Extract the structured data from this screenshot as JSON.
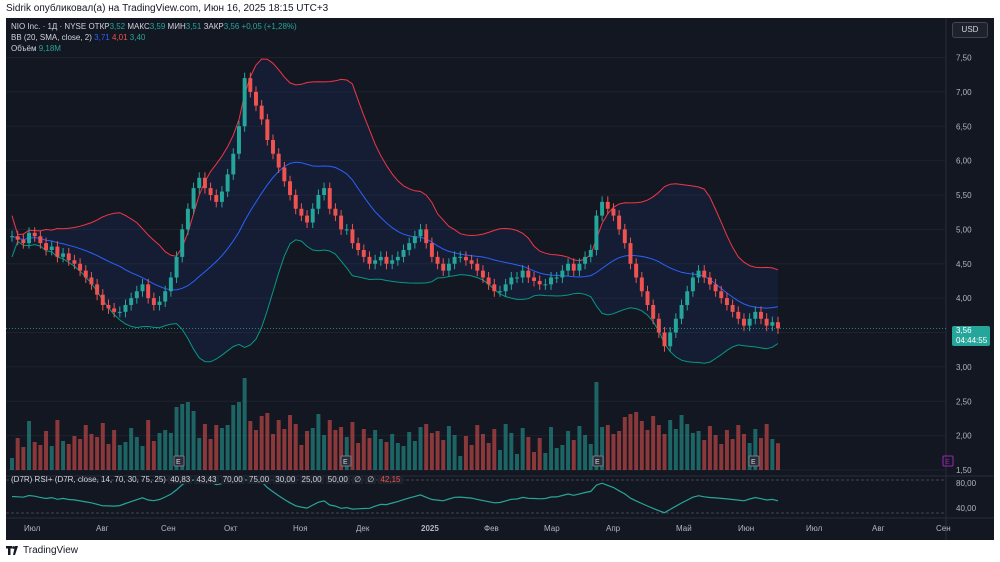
{
  "header": {
    "text": "Sidrik опубликовал(а) на TradingView.com, Июн 16, 2025 18:15 UTC+3"
  },
  "legend": {
    "symbol": "NIO Inc. · 1Д · NYSE",
    "open_label": "ОТКР",
    "open": "3,52",
    "high_label": "МАКС",
    "high": "3,59",
    "low_label": "МИН",
    "low": "3,51",
    "close_label": "ЗАКР",
    "close": "3,56",
    "change": "+0,05 (+1,28%)",
    "bb_label": "BB (20, SMA, close, 2)",
    "bb_mid": "3,71",
    "bb_upper": "4,01",
    "bb_lower": "3,40",
    "volume_label": "Объём",
    "volume": "9,18M"
  },
  "currency": "USD",
  "price_tag": {
    "price": "3,56",
    "countdown": "04:44:55"
  },
  "rsi": {
    "label": "(D7R) RSI+ (D7R, close, 14, 70, 30, 75, 25)",
    "values": [
      "40,83",
      "43,43",
      "70,00",
      "75,00",
      "30,00",
      "25,00",
      "50,00",
      "∅",
      "∅",
      "42,15"
    ],
    "axis": [
      "80,00",
      "40,00"
    ]
  },
  "price_axis": [
    "7,50",
    "7,00",
    "6,50",
    "6,00",
    "5,50",
    "5,00",
    "4,50",
    "4,00",
    "3,50",
    "3,00",
    "2,50",
    "2,00",
    "1,50"
  ],
  "time_axis": [
    "Июл",
    "Авг",
    "Сен",
    "Окт",
    "Ноя",
    "Дек",
    "2025",
    "Фев",
    "Мар",
    "Апр",
    "Май",
    "Июн",
    "Июл",
    "Авг",
    "Сен"
  ],
  "event_marker": "E",
  "branding": {
    "name": "TradingView"
  },
  "colors": {
    "bg": "#131722",
    "up": "#26a69a",
    "down": "#ef5350",
    "bb_mid": "#2962ff",
    "bb_upper": "#f23645",
    "bb_lower": "#089981"
  },
  "chart_data": {
    "type": "candlestick",
    "symbol": "NIO",
    "interval": "1D",
    "ylim": [
      1.5,
      7.9
    ],
    "x_months": [
      "Июл",
      "Авг",
      "Сен",
      "Окт",
      "Ноя",
      "Дек",
      "2025",
      "Фев",
      "Мар",
      "Апр",
      "Май",
      "Июн"
    ],
    "close_series": [
      4.9,
      4.85,
      4.8,
      4.95,
      4.9,
      4.8,
      4.7,
      4.75,
      4.6,
      4.65,
      4.55,
      4.5,
      4.4,
      4.3,
      4.2,
      4.05,
      3.9,
      3.85,
      3.8,
      3.8,
      3.9,
      4.0,
      4.1,
      4.2,
      4.0,
      3.9,
      3.95,
      4.1,
      4.3,
      4.6,
      5.0,
      5.3,
      5.6,
      5.75,
      5.6,
      5.5,
      5.4,
      5.55,
      5.8,
      6.1,
      6.5,
      7.2,
      7.0,
      6.8,
      6.6,
      6.3,
      6.1,
      5.9,
      5.7,
      5.5,
      5.3,
      5.2,
      5.1,
      5.3,
      5.5,
      5.6,
      5.3,
      5.2,
      5.0,
      5.0,
      4.8,
      4.7,
      4.6,
      4.5,
      4.55,
      4.6,
      4.5,
      4.55,
      4.6,
      4.7,
      4.8,
      4.9,
      5.0,
      4.8,
      4.6,
      4.5,
      4.4,
      4.5,
      4.6,
      4.6,
      4.55,
      4.5,
      4.4,
      4.3,
      4.2,
      4.1,
      4.1,
      4.2,
      4.3,
      4.3,
      4.4,
      4.3,
      4.25,
      4.2,
      4.2,
      4.3,
      4.3,
      4.4,
      4.5,
      4.4,
      4.5,
      4.6,
      4.7,
      5.2,
      5.4,
      5.3,
      5.2,
      5.0,
      4.8,
      4.5,
      4.3,
      4.1,
      3.9,
      3.7,
      3.5,
      3.3,
      3.5,
      3.7,
      3.9,
      4.1,
      4.3,
      4.4,
      4.3,
      4.2,
      4.1,
      4.0,
      3.9,
      3.8,
      3.7,
      3.6,
      3.7,
      3.8,
      3.7,
      3.6,
      3.65,
      3.56
    ],
    "volume_axis_note": "volume bars (relative)",
    "last_close": 3.56,
    "bollinger": {
      "mid": 3.71,
      "upper": 4.01,
      "lower": 3.4
    },
    "rsi_last": 42.15
  }
}
